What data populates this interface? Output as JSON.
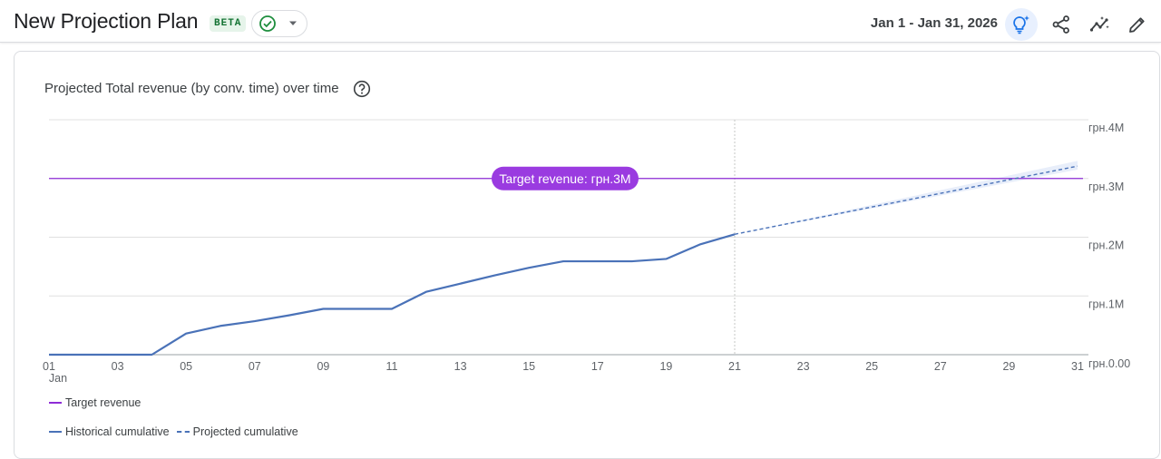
{
  "header": {
    "title": "New Projection Plan",
    "badge": "BETA",
    "date_range": "Jan 1 - Jan 31, 2026"
  },
  "toolbar_icons": [
    "lightbulb-sparkle-icon",
    "share-icon",
    "insights-icon",
    "edit-icon"
  ],
  "card": {
    "title": "Projected Total revenue (by conv. time) over time"
  },
  "colors": {
    "historical": "#4a72b8",
    "projected": "#4a72b8",
    "target": "#8e2bd6",
    "target_pill": "#9a3be0",
    "band": "#e8eefa",
    "grid": "#e0e0e0"
  },
  "legend": {
    "target": "Target revenue",
    "historical": "Historical cumulative",
    "projected": "Projected cumulative"
  },
  "chart_data": {
    "type": "line",
    "x_ticks": [
      "01",
      "03",
      "05",
      "07",
      "09",
      "11",
      "13",
      "15",
      "17",
      "19",
      "21",
      "23",
      "25",
      "27",
      "29",
      "31"
    ],
    "x_month_label": "Jan",
    "y_ticks": [
      "грн.0.00",
      "грн.1M",
      "грн.2M",
      "грн.3M",
      "грн.4M"
    ],
    "ylim": [
      0,
      4
    ],
    "y_unit": "M",
    "target": {
      "value": 3.0,
      "label": "Target revenue: грн.3M"
    },
    "historical": {
      "days": [
        1,
        2,
        3,
        4,
        5,
        6,
        7,
        8,
        9,
        10,
        11,
        12,
        13,
        14,
        15,
        16,
        17,
        18,
        19,
        20,
        21
      ],
      "values": [
        0.0,
        0.0,
        0.0,
        0.0,
        0.36,
        0.49,
        0.57,
        0.67,
        0.78,
        0.78,
        0.78,
        1.07,
        1.21,
        1.35,
        1.48,
        1.59,
        1.59,
        1.59,
        1.63,
        1.88,
        2.05
      ]
    },
    "projected": {
      "days": [
        21,
        31
      ],
      "values": [
        2.05,
        3.21
      ],
      "band_low": [
        2.05,
        3.15
      ],
      "band_high": [
        2.05,
        3.3
      ]
    },
    "divider_day": 21
  }
}
